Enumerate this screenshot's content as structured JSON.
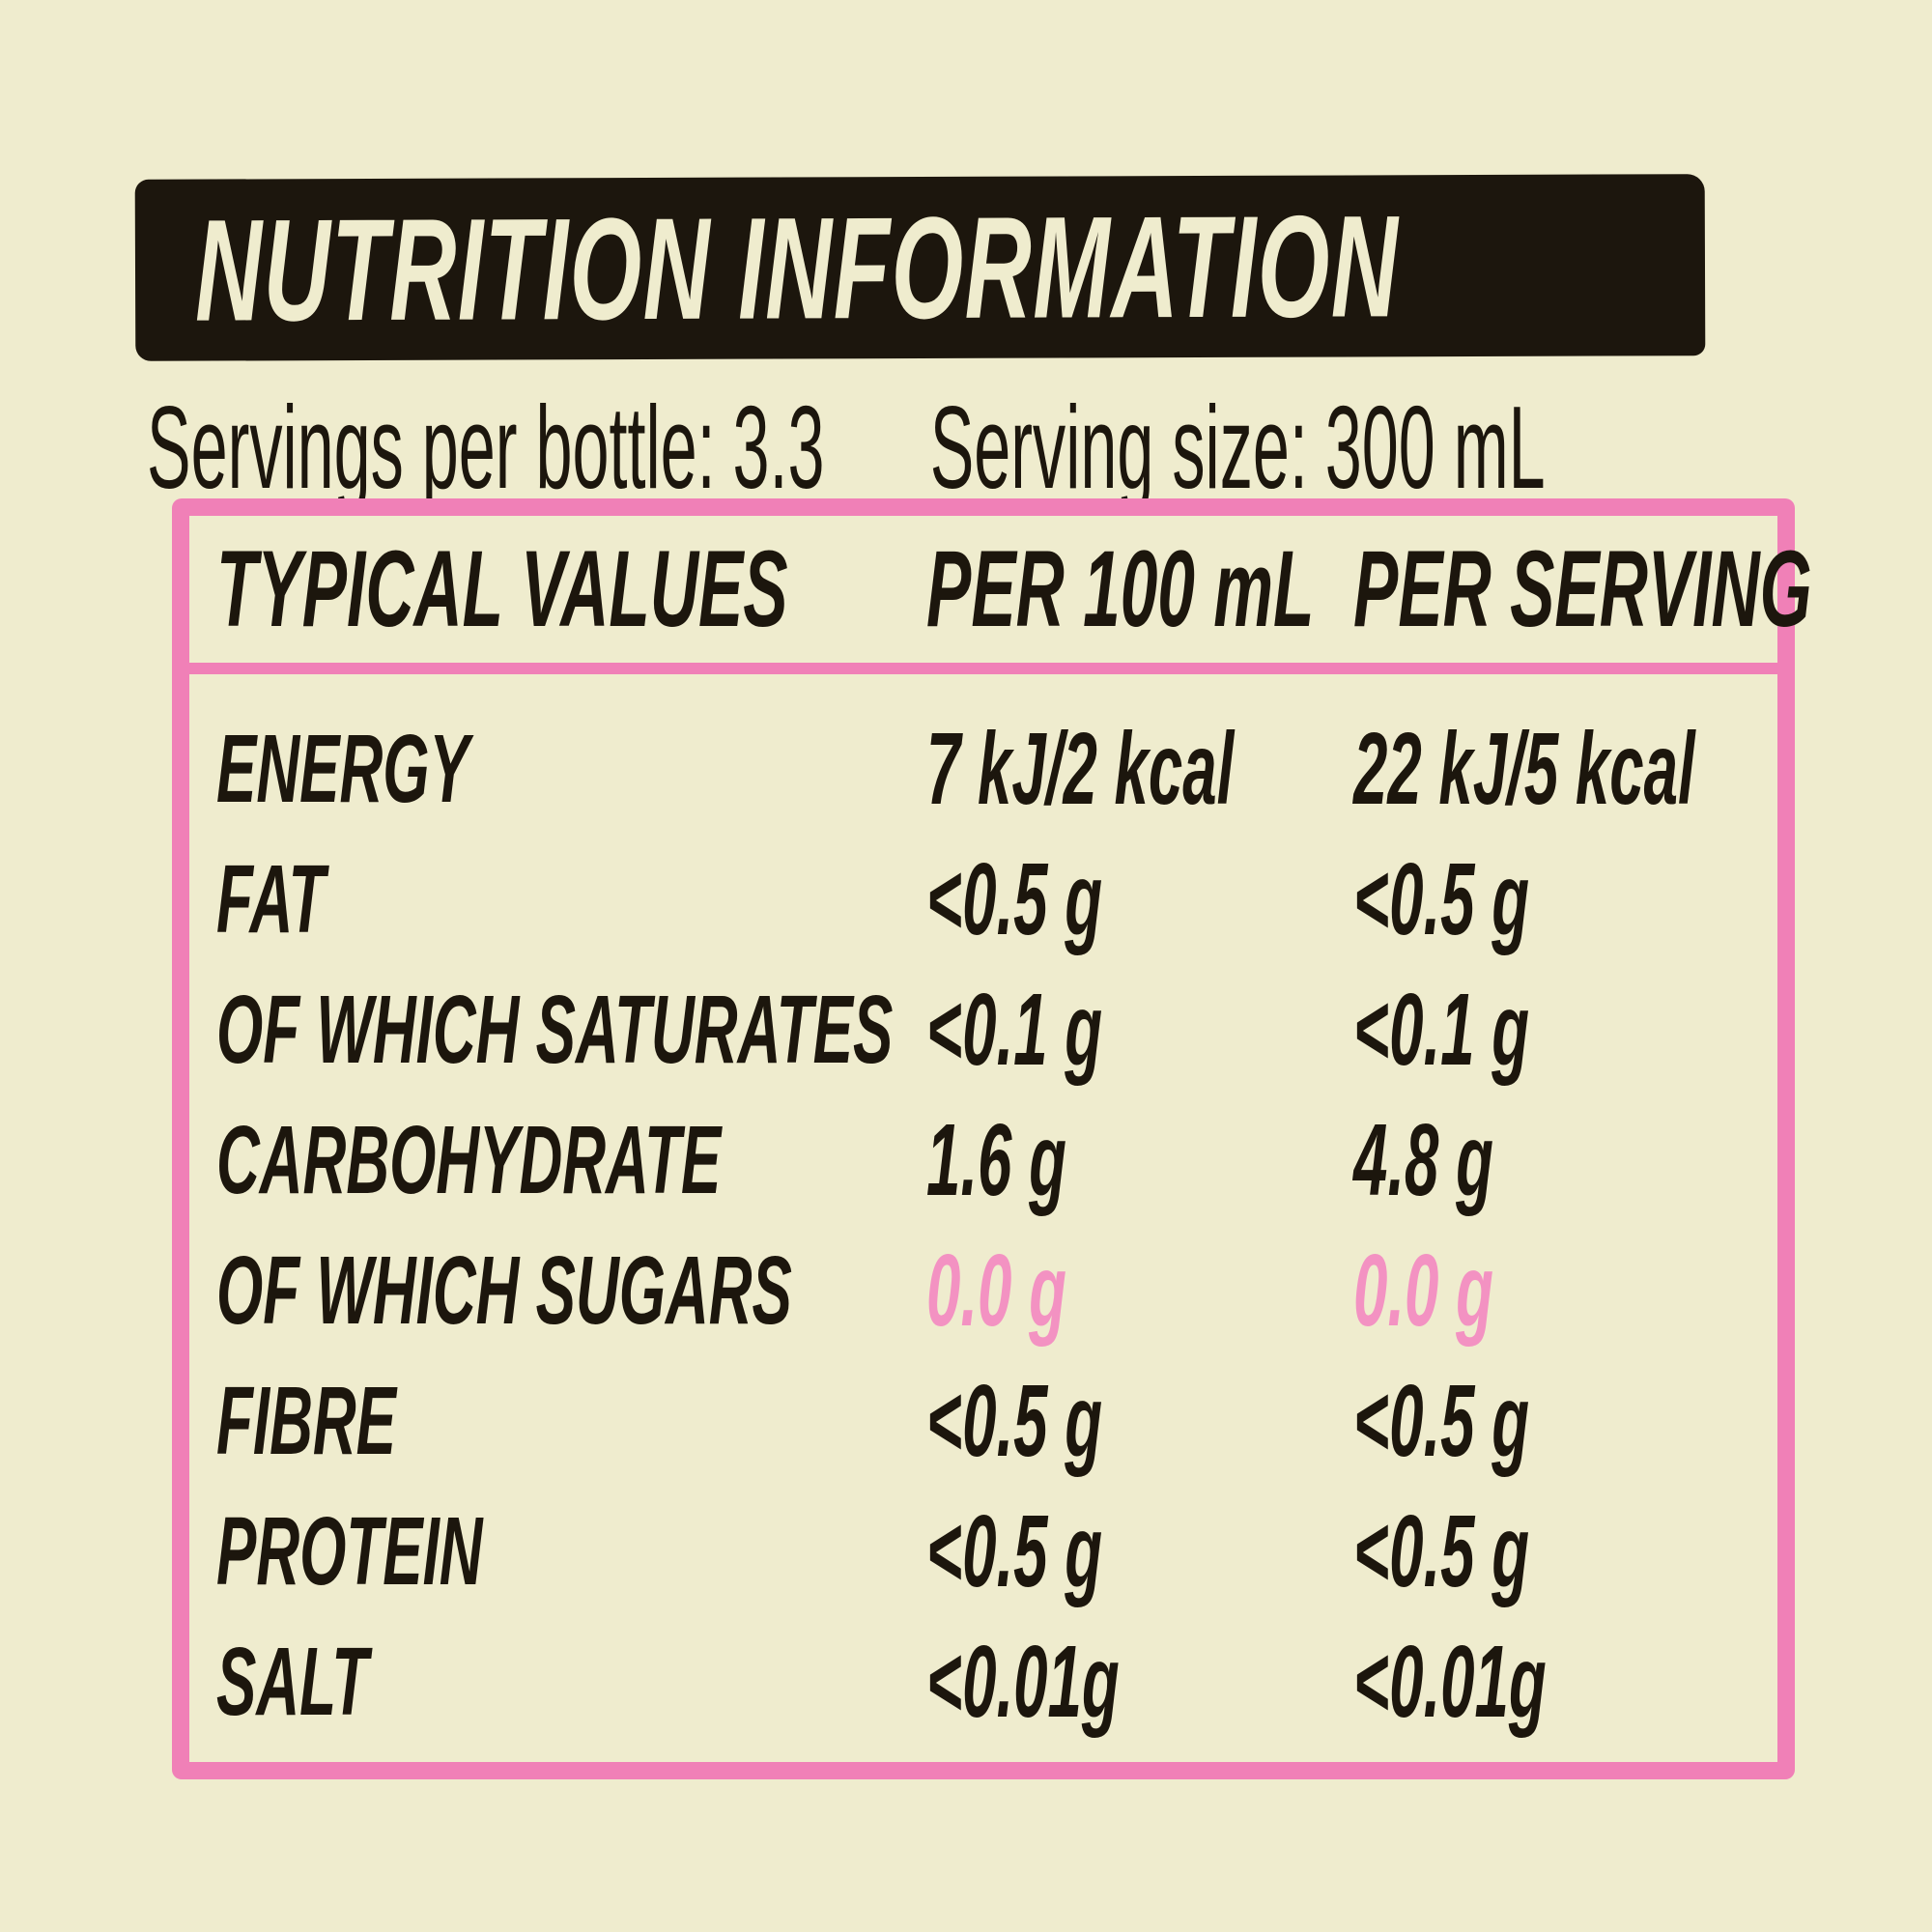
{
  "colors": {
    "background": "#EFECCE",
    "ink": "#1C160D",
    "pink_border": "#F080B7",
    "pink_value_text": "#F392C2",
    "title_bar_background": "#1C160D",
    "title_text": "#EFECCE"
  },
  "title": "NUTRITION INFORMATION",
  "servings": {
    "per_bottle_label": "Servings per bottle:",
    "per_bottle_value": "3.3",
    "serving_size_label": "Serving size:",
    "serving_size_value": "300 mL"
  },
  "table": {
    "columns": {
      "c0": "TYPICAL VALUES",
      "c1": "PER 100 mL",
      "c2": "PER SERVING"
    },
    "rows": [
      {
        "label": "ENERGY",
        "per_100ml": "7 kJ/2 kcal",
        "per_serving": "22 kJ/5 kcal",
        "highlight": false
      },
      {
        "label": "FAT",
        "per_100ml": "<0.5 g",
        "per_serving": "<0.5 g",
        "highlight": false
      },
      {
        "label": "OF WHICH SATURATES",
        "per_100ml": "<0.1 g",
        "per_serving": "<0.1 g",
        "highlight": false
      },
      {
        "label": "CARBOHYDRATE",
        "per_100ml": "1.6 g",
        "per_serving": "4.8 g",
        "highlight": false
      },
      {
        "label": "OF WHICH SUGARS",
        "per_100ml": "0.0 g",
        "per_serving": "0.0 g",
        "highlight": true
      },
      {
        "label": "FIBRE",
        "per_100ml": "<0.5 g",
        "per_serving": "<0.5 g",
        "highlight": false
      },
      {
        "label": "PROTEIN",
        "per_100ml": "<0.5 g",
        "per_serving": "<0.5 g",
        "highlight": false
      },
      {
        "label": "SALT",
        "per_100ml": "<0.01g",
        "per_serving": "<0.01g",
        "highlight": false
      }
    ]
  }
}
